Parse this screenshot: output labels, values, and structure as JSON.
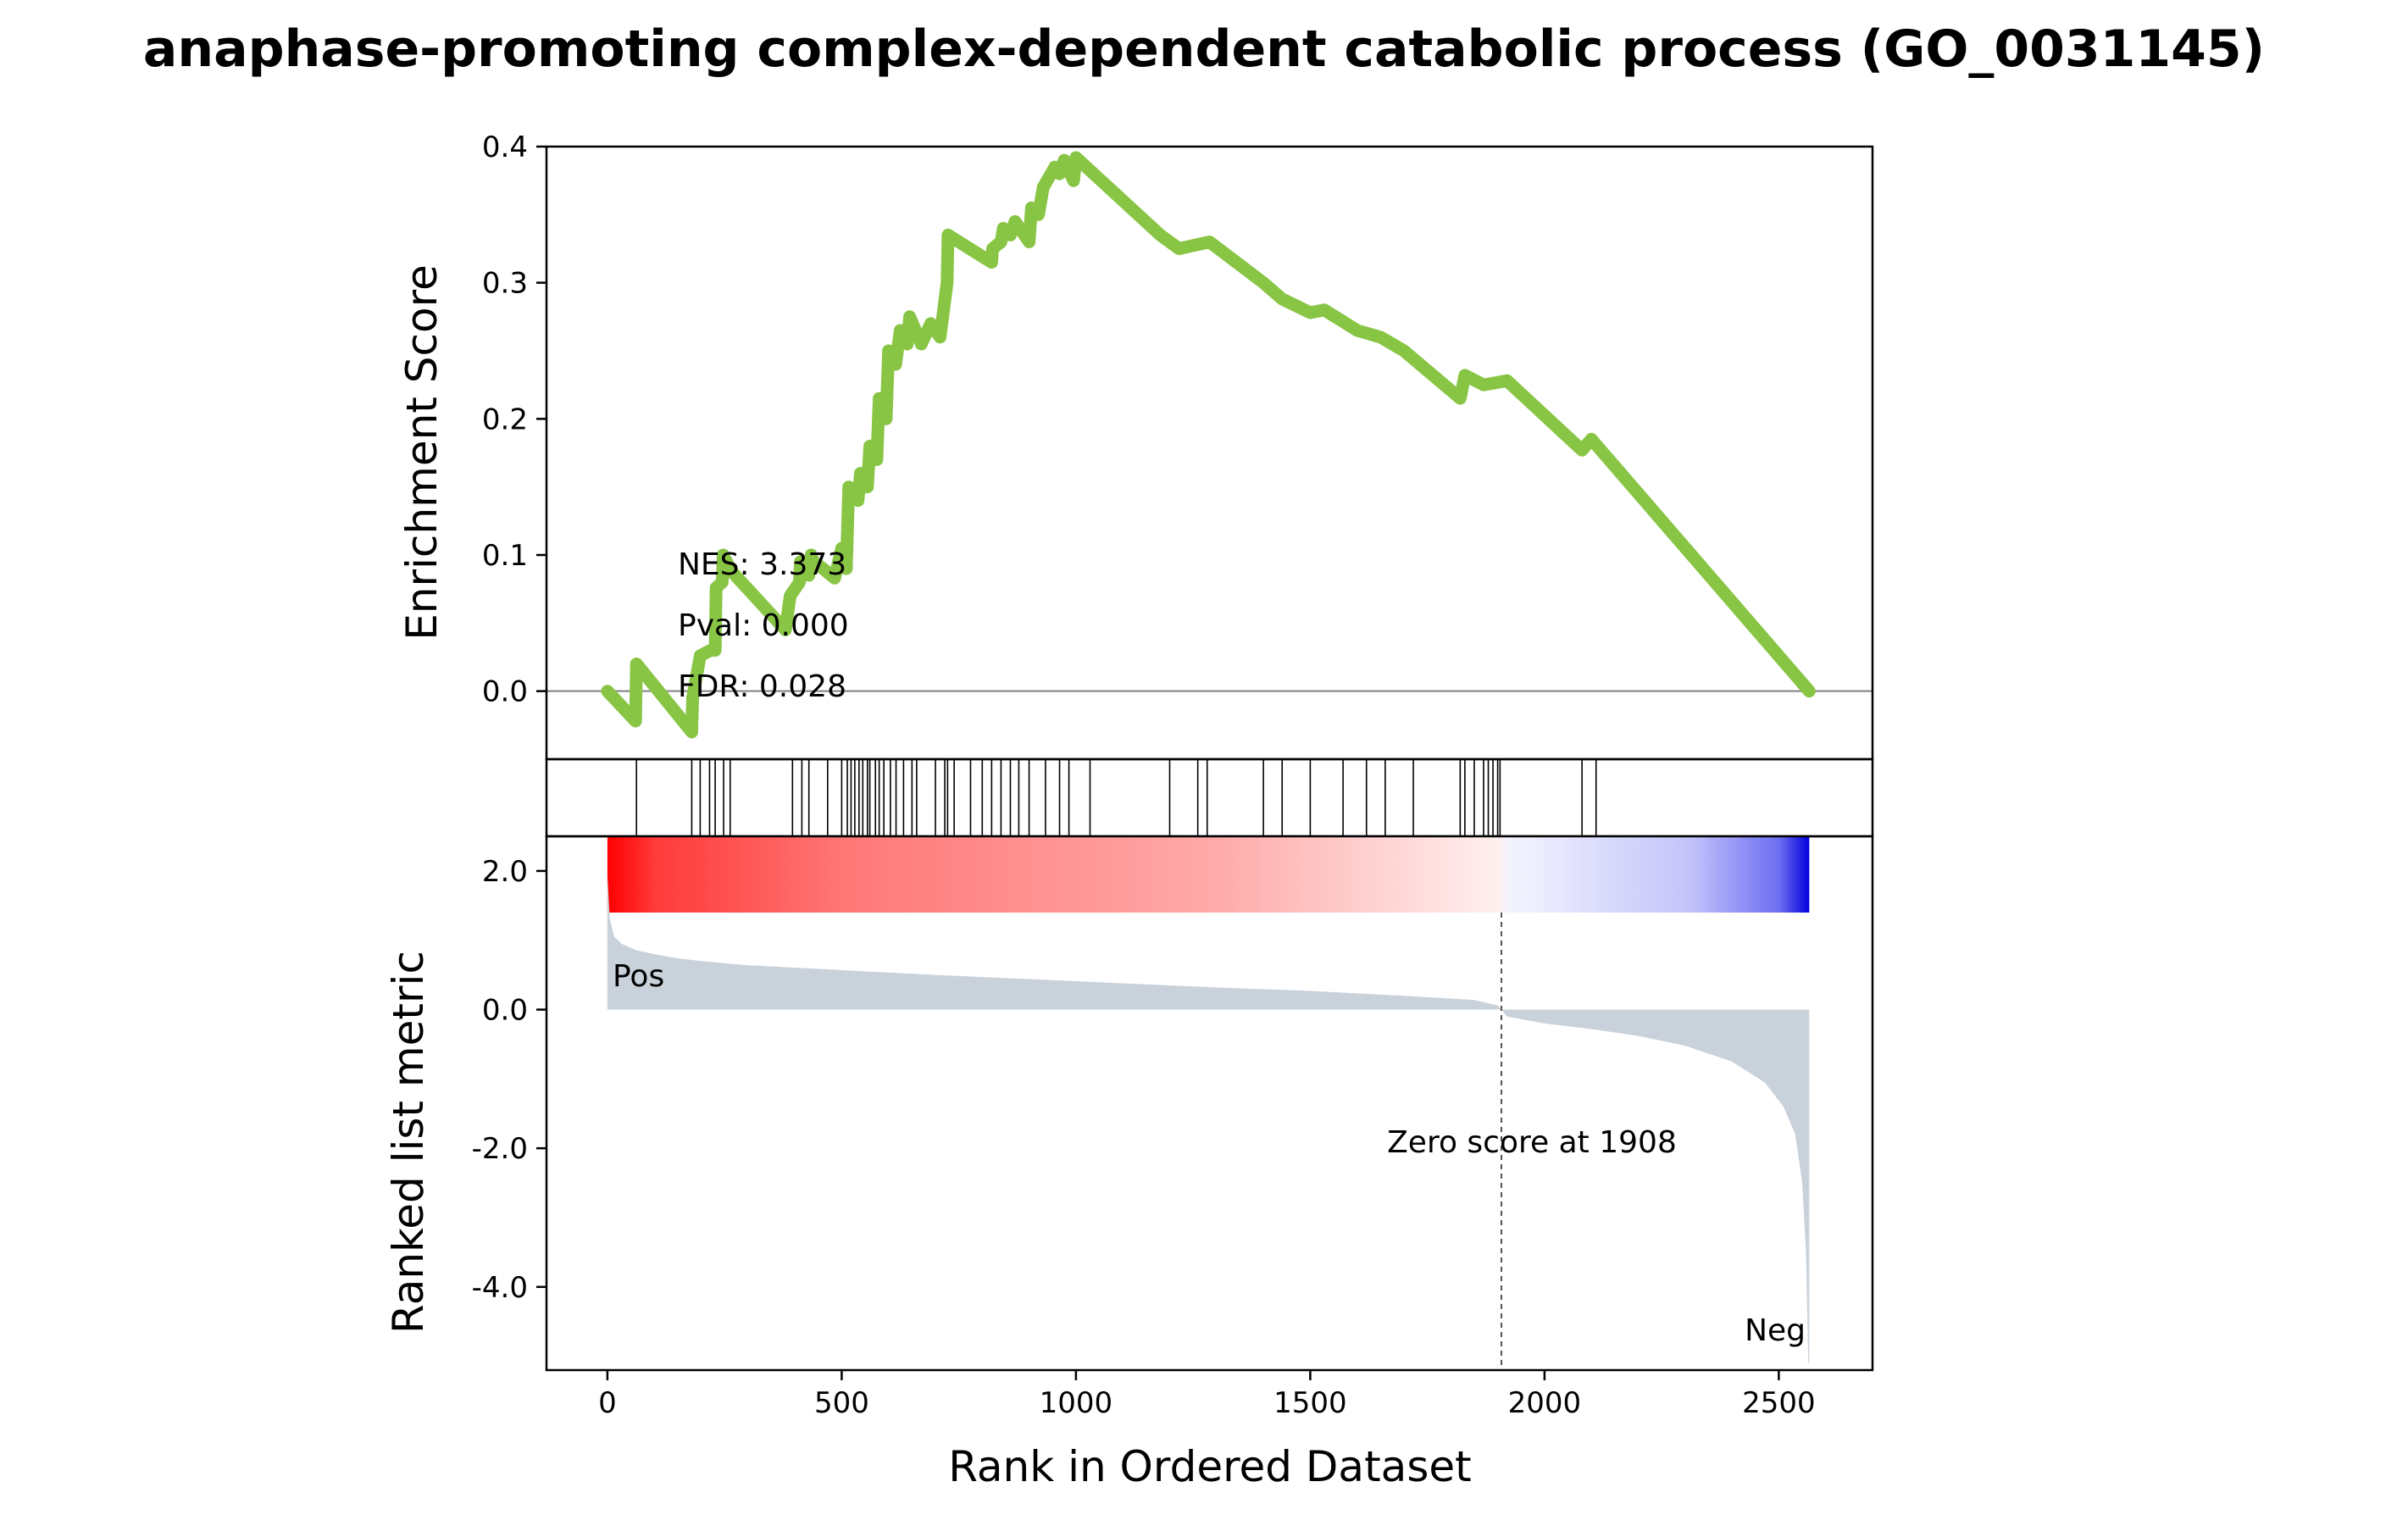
{
  "chart_data": {
    "type": "line",
    "title": "anaphase-promoting complex-dependent catabolic process (GO_0031145)",
    "xlabel": "Rank in Ordered Dataset",
    "xlim": [
      -130,
      2700
    ],
    "x_ticks": [
      0,
      500,
      1000,
      1500,
      2000,
      2500
    ],
    "enrichment": {
      "ylabel": "Enrichment Score",
      "ylim": [
        -0.05,
        0.4
      ],
      "y_ticks": [
        {
          "value": 0.0,
          "label": "0.0"
        },
        {
          "value": 0.1,
          "label": "0.1"
        },
        {
          "value": 0.2,
          "label": "0.2"
        },
        {
          "value": 0.3,
          "label": "0.3"
        },
        {
          "value": 0.4,
          "label": "0.4"
        }
      ],
      "line_color": "#88c544",
      "points": [
        [
          0,
          0.0
        ],
        [
          60,
          -0.022
        ],
        [
          62,
          0.02
        ],
        [
          180,
          -0.03
        ],
        [
          182,
          -0.005
        ],
        [
          198,
          0.026
        ],
        [
          220,
          0.03
        ],
        [
          230,
          0.03
        ],
        [
          232,
          0.076
        ],
        [
          245,
          0.08
        ],
        [
          247,
          0.1
        ],
        [
          265,
          0.088
        ],
        [
          380,
          0.045
        ],
        [
          390,
          0.07
        ],
        [
          410,
          0.08
        ],
        [
          412,
          0.095
        ],
        [
          430,
          0.085
        ],
        [
          435,
          0.1
        ],
        [
          440,
          0.095
        ],
        [
          460,
          0.09
        ],
        [
          485,
          0.083
        ],
        [
          500,
          0.105
        ],
        [
          510,
          0.09
        ],
        [
          515,
          0.15
        ],
        [
          535,
          0.14
        ],
        [
          540,
          0.16
        ],
        [
          555,
          0.15
        ],
        [
          560,
          0.18
        ],
        [
          575,
          0.17
        ],
        [
          580,
          0.215
        ],
        [
          595,
          0.2
        ],
        [
          600,
          0.25
        ],
        [
          615,
          0.24
        ],
        [
          625,
          0.265
        ],
        [
          640,
          0.255
        ],
        [
          645,
          0.275
        ],
        [
          670,
          0.255
        ],
        [
          690,
          0.27
        ],
        [
          710,
          0.26
        ],
        [
          725,
          0.3
        ],
        [
          727,
          0.335
        ],
        [
          820,
          0.315
        ],
        [
          822,
          0.325
        ],
        [
          840,
          0.33
        ],
        [
          845,
          0.34
        ],
        [
          860,
          0.335
        ],
        [
          870,
          0.345
        ],
        [
          900,
          0.33
        ],
        [
          905,
          0.355
        ],
        [
          920,
          0.35
        ],
        [
          930,
          0.37
        ],
        [
          955,
          0.385
        ],
        [
          965,
          0.38
        ],
        [
          975,
          0.39
        ],
        [
          995,
          0.375
        ],
        [
          1000,
          0.392
        ],
        [
          1180,
          0.335
        ],
        [
          1220,
          0.325
        ],
        [
          1285,
          0.33
        ],
        [
          1400,
          0.3
        ],
        [
          1440,
          0.288
        ],
        [
          1500,
          0.278
        ],
        [
          1530,
          0.28
        ],
        [
          1600,
          0.265
        ],
        [
          1650,
          0.26
        ],
        [
          1700,
          0.25
        ],
        [
          1820,
          0.215
        ],
        [
          1830,
          0.232
        ],
        [
          1870,
          0.225
        ],
        [
          1920,
          0.228
        ],
        [
          2080,
          0.177
        ],
        [
          2100,
          0.185
        ],
        [
          2565,
          0.0
        ]
      ],
      "annotations": [
        "NES: 3.373",
        "Pval: 0.000",
        "FDR: 0.028"
      ]
    },
    "hits": [
      62,
      180,
      198,
      218,
      230,
      248,
      262,
      395,
      415,
      430,
      470,
      500,
      512,
      520,
      528,
      537,
      545,
      555,
      560,
      572,
      580,
      590,
      604,
      616,
      632,
      650,
      660,
      700,
      720,
      726,
      740,
      775,
      800,
      820,
      840,
      860,
      878,
      900,
      935,
      965,
      985,
      1030,
      1200,
      1260,
      1280,
      1400,
      1440,
      1500,
      1570,
      1620,
      1660,
      1720,
      1820,
      1830,
      1850,
      1870,
      1880,
      1890,
      1900,
      1905,
      2080,
      2110
    ],
    "ranked": {
      "ylabel": "Ranked list metric",
      "ylim": [
        -5.2,
        2.5
      ],
      "y_ticks": [
        {
          "value": 2.0,
          "label": "2.0"
        },
        {
          "value": 0.0,
          "label": "0.0"
        },
        {
          "value": -2.0,
          "label": "-2.0"
        },
        {
          "value": -4.0,
          "label": "-4.0"
        }
      ],
      "fill_color": "#c9d2da",
      "points": [
        [
          0,
          1.95
        ],
        [
          5,
          1.3
        ],
        [
          15,
          1.05
        ],
        [
          30,
          0.95
        ],
        [
          60,
          0.86
        ],
        [
          100,
          0.8
        ],
        [
          150,
          0.74
        ],
        [
          200,
          0.7
        ],
        [
          300,
          0.64
        ],
        [
          500,
          0.57
        ],
        [
          700,
          0.5
        ],
        [
          900,
          0.44
        ],
        [
          1100,
          0.38
        ],
        [
          1300,
          0.32
        ],
        [
          1500,
          0.27
        ],
        [
          1700,
          0.2
        ],
        [
          1850,
          0.14
        ],
        [
          1900,
          0.06
        ],
        [
          1908,
          0.0
        ],
        [
          1920,
          -0.1
        ],
        [
          2000,
          -0.2
        ],
        [
          2100,
          -0.28
        ],
        [
          2200,
          -0.38
        ],
        [
          2300,
          -0.52
        ],
        [
          2400,
          -0.75
        ],
        [
          2470,
          -1.05
        ],
        [
          2510,
          -1.4
        ],
        [
          2535,
          -1.8
        ],
        [
          2550,
          -2.5
        ],
        [
          2558,
          -3.5
        ],
        [
          2563,
          -5.1
        ],
        [
          2565,
          -5.1
        ]
      ],
      "pos_label": "Pos",
      "neg_label": "Neg",
      "pos_color": "#ff0000",
      "neg_color": "#0000ff",
      "zero_score_text": "Zero score at 1908",
      "zero_rank": 1908
    }
  }
}
